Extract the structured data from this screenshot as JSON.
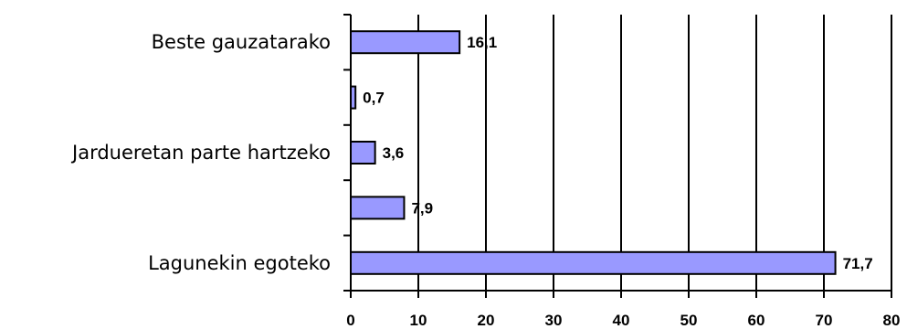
{
  "chart_data": {
    "type": "bar",
    "orientation": "horizontal",
    "categories": [
      "Beste gauzatarako",
      "",
      "Jardueretan parte hartzeko",
      "",
      "Lagunekin egoteko"
    ],
    "values": [
      16.1,
      0.7,
      3.6,
      7.9,
      71.7
    ],
    "value_labels": [
      "16,1",
      "0,7",
      "3,6",
      "7,9",
      "71,7"
    ],
    "xlim": [
      0,
      80
    ],
    "xticks": [
      0,
      10,
      20,
      30,
      40,
      50,
      60,
      70,
      80
    ],
    "xtick_labels": [
      "0",
      "10",
      "20",
      "30",
      "40",
      "50",
      "60",
      "70",
      "80"
    ],
    "grid": "vertical",
    "legend": "none",
    "bar_color": "#9999ff",
    "bar_stroke": "#000000",
    "title": "",
    "xlabel": "",
    "ylabel": ""
  }
}
